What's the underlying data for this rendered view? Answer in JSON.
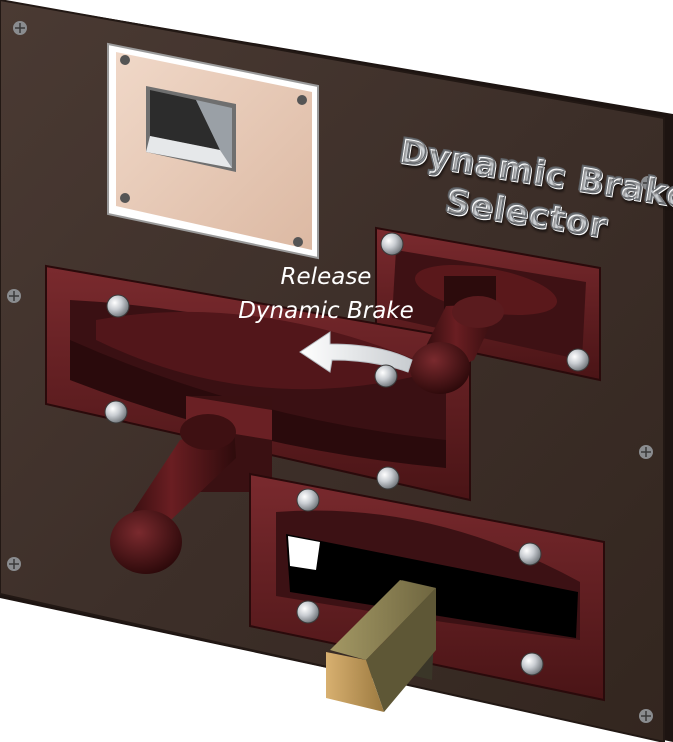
{
  "panel": {
    "title_line1": "Dynamic Brake",
    "title_line2": "Selector",
    "release_line1": "Release",
    "release_line2": "Dynamic Brake"
  },
  "colors": {
    "panel": "#3d2f29",
    "slot_frame": "#5e1a1d",
    "slot_dark": "#361012",
    "handle": "#4b1417",
    "reverser_block": "#8a7f4e",
    "placard": "#e8c9b5",
    "text_silver": "#d2d6da"
  },
  "icons": [
    "screw-icon",
    "bolt-icon",
    "curved-arrow-icon",
    "lever-handle-icon",
    "key-socket-icon"
  ]
}
